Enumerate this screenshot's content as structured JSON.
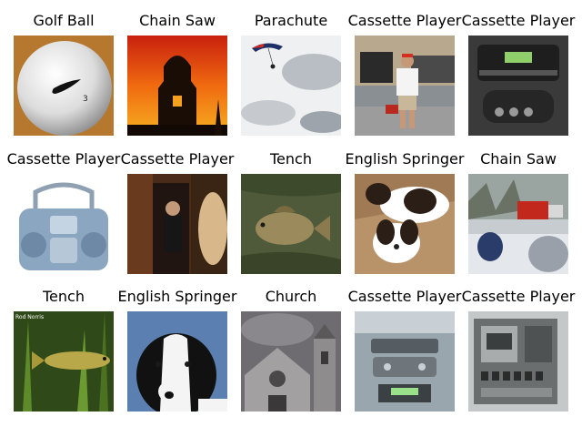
{
  "grid": {
    "rows": [
      [
        {
          "label": "Golf Ball"
        },
        {
          "label": "Chain Saw"
        },
        {
          "label": "Parachute"
        },
        {
          "label": "Cassette Player"
        },
        {
          "label": "Cassette Player"
        }
      ],
      [
        {
          "label": "Cassette Player"
        },
        {
          "label": "Cassette Player"
        },
        {
          "label": "Tench"
        },
        {
          "label": "English Springer"
        },
        {
          "label": "Chain Saw"
        }
      ],
      [
        {
          "label": "Tench"
        },
        {
          "label": "English Springer"
        },
        {
          "label": "Church"
        },
        {
          "label": "Cassette Player"
        },
        {
          "label": "Cassette Player"
        }
      ]
    ]
  },
  "image_text": {
    "tench_caption": "Rod Norris"
  }
}
